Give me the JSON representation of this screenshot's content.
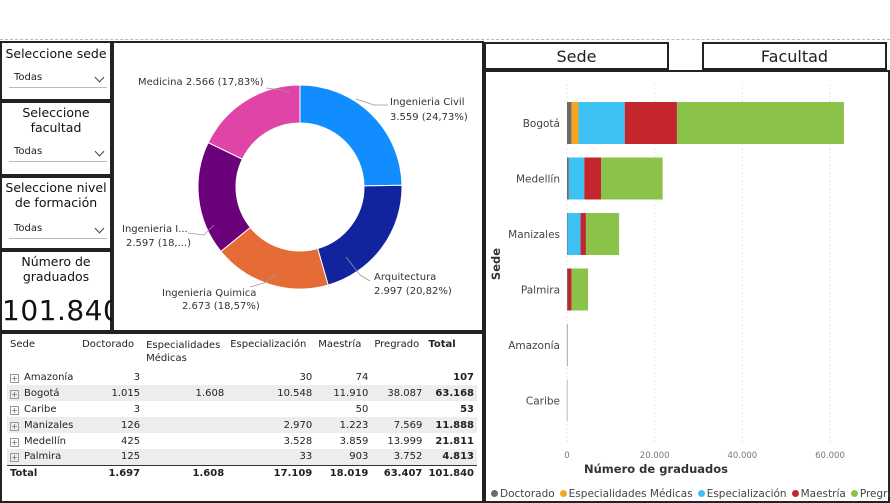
{
  "slicers": [
    {
      "title": "Seleccione sede",
      "value": "Todas"
    },
    {
      "title": "Seleccione facultad",
      "value": "Todas"
    },
    {
      "title": "Seleccione nivel de formación",
      "value": "Todas"
    }
  ],
  "kpi": {
    "title": "Número de graduados",
    "value": "101.840"
  },
  "tabs": {
    "sede": "Sede",
    "facultad": "Facultad"
  },
  "donut": {
    "slices": [
      {
        "label": "Ingenieria Civil",
        "value_label": "3.559 (24,73%)",
        "value": 3559,
        "color": "#118DFF"
      },
      {
        "label": "Arquitectura",
        "value_label": "2.997 (20,82%)",
        "value": 2997,
        "color": "#12239E"
      },
      {
        "label": "Ingenieria Quimica",
        "value_label": "2.673 (18,57%)",
        "value": 2673,
        "color": "#E66C37"
      },
      {
        "label": "Ingenieria I...",
        "value_label": "2.597 (18,...)",
        "value": 2597,
        "color": "#6B007B"
      },
      {
        "label": "Medicina",
        "value_label": "2.566 (17,83%)",
        "value": 2566,
        "color": "#E044A7"
      }
    ]
  },
  "matrix": {
    "headers": [
      "Sede",
      "Doctorado",
      "Especialidades Médicas",
      "Especialización",
      "Maestría",
      "Pregrado",
      "Total"
    ],
    "rows": [
      [
        "Amazonía",
        "3",
        "",
        "30",
        "74",
        "",
        "107"
      ],
      [
        "Bogotá",
        "1.015",
        "1.608",
        "10.548",
        "11.910",
        "38.087",
        "63.168"
      ],
      [
        "Caribe",
        "3",
        "",
        "",
        "50",
        "",
        "53"
      ],
      [
        "Manizales",
        "126",
        "",
        "2.970",
        "1.223",
        "7.569",
        "11.888"
      ],
      [
        "Medellín",
        "425",
        "",
        "3.528",
        "3.859",
        "13.999",
        "21.811"
      ],
      [
        "Palmira",
        "125",
        "",
        "33",
        "903",
        "3.752",
        "4.813"
      ]
    ],
    "total": [
      "Total",
      "1.697",
      "1.608",
      "17.109",
      "18.019",
      "63.407",
      "101.840"
    ]
  },
  "chart_data": {
    "type": "bar",
    "orientation": "horizontal",
    "stacked": true,
    "categories": [
      "Bogotá",
      "Medellín",
      "Manizales",
      "Palmira",
      "Amazonía",
      "Caribe"
    ],
    "series": [
      {
        "name": "Doctorado",
        "color": "#6B6B6B",
        "values": [
          1015,
          425,
          126,
          125,
          3,
          3
        ]
      },
      {
        "name": "Especialidades Médicas",
        "color": "#F5A623",
        "values": [
          1608,
          0,
          0,
          0,
          0,
          0
        ]
      },
      {
        "name": "Especialización",
        "color": "#3EC1F3",
        "values": [
          10548,
          3528,
          2970,
          33,
          30,
          0
        ]
      },
      {
        "name": "Maestría",
        "color": "#C4262E",
        "values": [
          11910,
          3859,
          1223,
          903,
          74,
          50
        ]
      },
      {
        "name": "Pregrado",
        "color": "#8BC34A",
        "values": [
          38087,
          13999,
          7569,
          3752,
          0,
          0
        ]
      }
    ],
    "xlabel": "Número de graduados",
    "ylabel": "Sede",
    "xlim": [
      0,
      65000
    ],
    "xticks": [
      0,
      20000,
      40000,
      60000
    ],
    "xtick_labels": [
      "0",
      "20.000",
      "40.000",
      "60.000"
    ],
    "legend_position": "bottom"
  }
}
